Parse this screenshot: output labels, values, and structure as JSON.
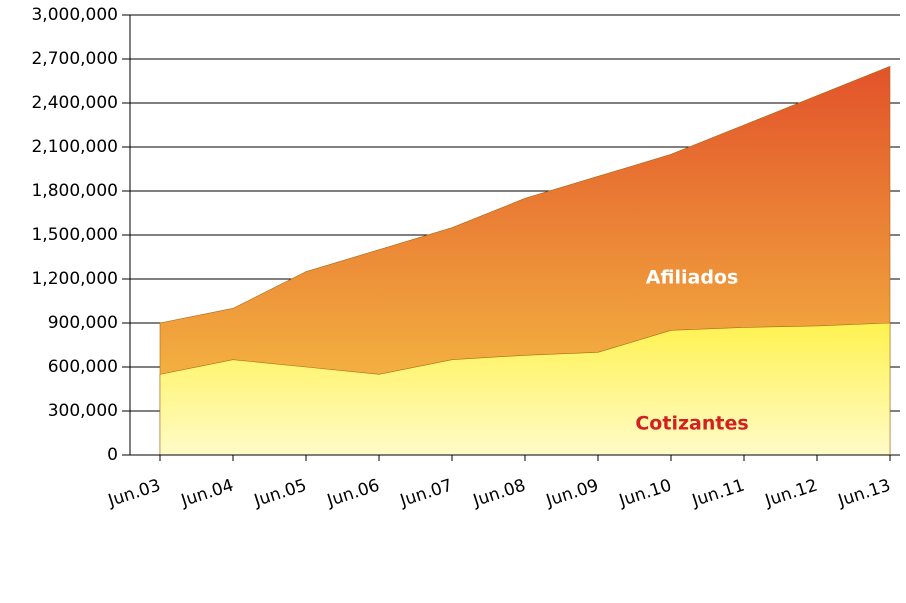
{
  "chart_data": {
    "type": "area",
    "categories": [
      "Jun.03",
      "Jun.04",
      "Jun.05",
      "Jun.06",
      "Jun.07",
      "Jun.08",
      "Jun.09",
      "Jun.10",
      "Jun.11",
      "Jun.12",
      "Jun.13"
    ],
    "series": [
      {
        "name": "Afiliados",
        "color": "#ec7a2e",
        "values": [
          900000,
          1000000,
          1250000,
          1400000,
          1550000,
          1750000,
          1900000,
          2050000,
          2250000,
          2450000,
          2650000
        ]
      },
      {
        "name": "Cotizantes",
        "color": "#fbe83a",
        "values": [
          550000,
          650000,
          600000,
          550000,
          650000,
          680000,
          700000,
          850000,
          870000,
          880000,
          900000
        ]
      }
    ],
    "ylim": [
      0,
      3000000
    ],
    "yticks": [
      0,
      {
        "value": 300000,
        "label": "300,000"
      },
      {
        "value": 600000,
        "label": "600,000"
      },
      {
        "value": 900000,
        "label": "900,000"
      },
      {
        "value": 1200000,
        "label": "1,200,000"
      },
      {
        "value": 1500000,
        "label": "1,500,000"
      },
      {
        "value": 1800000,
        "label": "1,800,000"
      },
      {
        "value": 2100000,
        "label": "2,100,000"
      },
      {
        "value": 2400000,
        "label": "2,400,000"
      },
      {
        "value": 2700000,
        "label": "2,700,000"
      },
      {
        "value": 3000000,
        "label": "3,000,000"
      }
    ],
    "grid": true
  }
}
